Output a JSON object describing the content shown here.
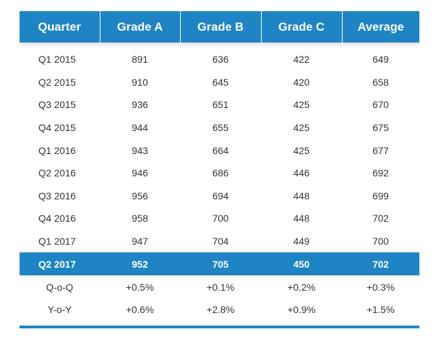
{
  "table": {
    "headers": [
      "Quarter",
      "Grade A",
      "Grade B",
      "Grade C",
      "Average"
    ],
    "rows": [
      [
        "Q1 2015",
        "891",
        "636",
        "422",
        "649"
      ],
      [
        "Q2 2015",
        "910",
        "645",
        "420",
        "658"
      ],
      [
        "Q3 2015",
        "936",
        "651",
        "425",
        "670"
      ],
      [
        "Q4 2015",
        "944",
        "655",
        "425",
        "675"
      ],
      [
        "Q1 2016",
        "943",
        "664",
        "425",
        "677"
      ],
      [
        "Q2 2016",
        "946",
        "686",
        "446",
        "692"
      ],
      [
        "Q3 2016",
        "956",
        "694",
        "448",
        "699"
      ],
      [
        "Q4 2016",
        "958",
        "700",
        "448",
        "702"
      ],
      [
        "Q1 2017",
        "947",
        "704",
        "449",
        "700"
      ]
    ],
    "highlight_row": [
      "Q2 2017",
      "952",
      "705",
      "450",
      "702"
    ],
    "change_rows": [
      [
        "Q-o-Q",
        "+0.5%",
        "+0.1%",
        "+0.2%",
        "+0.3%"
      ],
      [
        "Y-o-Y",
        "+0.6%",
        "+2.8%",
        "+0.9%",
        "+1.5%"
      ]
    ]
  },
  "colors": {
    "accent": "#1f84c4",
    "text": "#333333",
    "header_text": "#ffffff"
  }
}
